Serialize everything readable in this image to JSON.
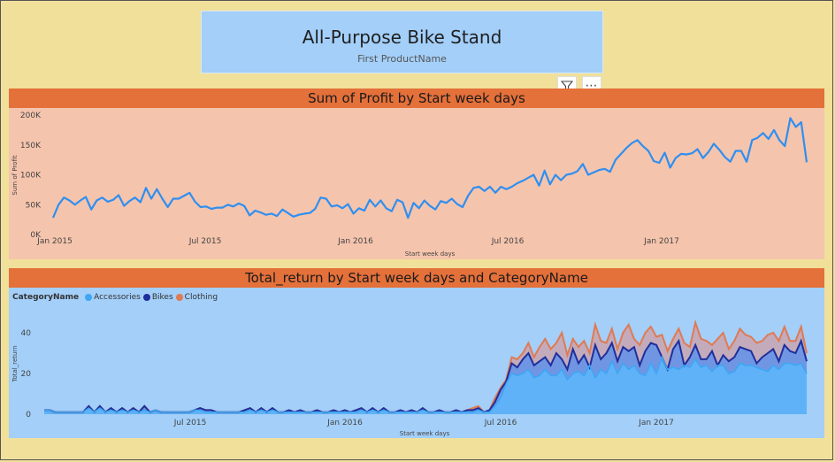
{
  "card": {
    "value": "All-Purpose Bike Stand",
    "label": "First ProductName"
  },
  "toolbar": {
    "filter_icon": "filter-icon",
    "more_label": "⋯"
  },
  "chart_data": [
    {
      "type": "line",
      "title": "Sum of Profit by Start week days",
      "xlabel": "Start week days",
      "ylabel": "Sum of Profit",
      "ylim": [
        0,
        200000
      ],
      "yticks": [
        "0K",
        "50K",
        "100K",
        "150K",
        "200K"
      ],
      "xticks": [
        "Jan 2015",
        "Jul 2015",
        "Jan 2016",
        "Jul 2016",
        "Jan 2017"
      ],
      "color": "#2f8ff0",
      "series": [
        {
          "values": [
            28000,
            50000,
            62000,
            57000,
            50000,
            57000,
            63000,
            42000,
            57000,
            62000,
            55000,
            58000,
            66000,
            48000,
            56000,
            62000,
            54000,
            78000,
            60000,
            76000,
            60000,
            46000,
            60000,
            60000,
            65000,
            70000,
            55000,
            46000,
            47000,
            43000,
            45000,
            45000,
            50000,
            47000,
            52000,
            48000,
            32000,
            40000,
            37000,
            33000,
            35000,
            31000,
            42000,
            36000,
            30000,
            33000,
            35000,
            36000,
            43000,
            62000,
            60000,
            47000,
            49000,
            44000,
            51000,
            35000,
            44000,
            40000,
            58000,
            47000,
            57000,
            44000,
            39000,
            58000,
            54000,
            28000,
            53000,
            44000,
            57000,
            48000,
            42000,
            56000,
            53000,
            60000,
            51000,
            46000,
            65000,
            78000,
            80000,
            73000,
            80000,
            70000,
            80000,
            76000,
            80000,
            86000,
            90000,
            95000,
            100000,
            82000,
            107000,
            84000,
            100000,
            91000,
            100000,
            102000,
            106000,
            118000,
            100000,
            104000,
            108000,
            110000,
            105000,
            125000,
            135000,
            145000,
            153000,
            158000,
            148000,
            140000,
            123000,
            120000,
            137000,
            112000,
            128000,
            135000,
            134000,
            136000,
            143000,
            128000,
            138000,
            152000,
            142000,
            130000,
            122000,
            140000,
            140000,
            122000,
            158000,
            162000,
            170000,
            160000,
            175000,
            158000,
            148000,
            195000,
            180000,
            188000,
            121000
          ]
        }
      ]
    },
    {
      "type": "area",
      "title": "Total_return by Start week days and CategoryName",
      "xlabel": "Start week days",
      "ylabel": "Total_return",
      "ylim": [
        0,
        50
      ],
      "yticks": [
        "0",
        "20",
        "40"
      ],
      "xticks": [
        "Jul 2015",
        "Jan 2016",
        "Jul 2016",
        "Jan 2017"
      ],
      "legend_title": "CategoryName",
      "legend_placement": "top-left",
      "series": [
        {
          "name": "Accessories",
          "color": "#3ea6f4"
        },
        {
          "name": "Bikes",
          "color": "#1f2f9c"
        },
        {
          "name": "Clothing",
          "color": "#e07a52"
        }
      ],
      "stacked_totals": {
        "accessories": [
          2,
          2,
          1,
          1,
          1,
          1,
          1,
          1,
          3,
          1,
          3,
          1,
          2,
          1,
          2,
          1,
          2,
          1,
          2,
          1,
          2,
          1,
          1,
          1,
          1,
          1,
          1,
          2,
          2,
          1,
          1,
          1,
          1,
          1,
          1,
          1,
          1,
          2,
          1,
          2,
          1,
          2,
          1,
          1,
          1,
          1,
          1,
          1,
          1,
          1,
          1,
          1,
          1,
          1,
          1,
          1,
          1,
          2,
          1,
          2,
          1,
          2,
          1,
          1,
          1,
          1,
          1,
          1,
          2,
          1,
          1,
          1,
          1,
          1,
          1,
          1,
          1,
          1,
          2,
          1,
          1,
          4,
          8,
          15,
          20,
          19,
          20,
          22,
          18,
          19,
          22,
          19,
          19,
          22,
          17,
          20,
          21,
          19,
          24,
          18,
          22,
          20,
          26,
          20,
          25,
          22,
          24,
          20,
          19,
          25,
          20,
          28,
          22,
          23,
          22,
          24,
          23,
          27,
          23,
          24,
          21,
          24,
          24,
          20,
          21,
          25,
          24,
          24,
          23,
          22,
          21,
          24,
          22,
          25,
          25,
          24,
          25,
          20
        ],
        "bikes": [
          2,
          2,
          1,
          1,
          1,
          1,
          1,
          1,
          4,
          1,
          4,
          1,
          3,
          1,
          3,
          1,
          3,
          1,
          4,
          1,
          2,
          1,
          1,
          1,
          1,
          1,
          1,
          2,
          3,
          2,
          2,
          1,
          1,
          1,
          1,
          1,
          2,
          3,
          1,
          3,
          1,
          3,
          1,
          1,
          2,
          1,
          2,
          1,
          1,
          2,
          1,
          1,
          2,
          1,
          2,
          1,
          2,
          3,
          1,
          3,
          1,
          3,
          1,
          1,
          2,
          1,
          2,
          1,
          3,
          1,
          1,
          2,
          1,
          1,
          2,
          1,
          2,
          2,
          3,
          1,
          2,
          6,
          12,
          16,
          25,
          23,
          27,
          30,
          24,
          26,
          28,
          24,
          30,
          27,
          22,
          32,
          25,
          29,
          23,
          34,
          27,
          30,
          35,
          26,
          33,
          31,
          33,
          24,
          31,
          35,
          34,
          28,
          22,
          32,
          36,
          24,
          28,
          34,
          27,
          27,
          31,
          24,
          29,
          26,
          28,
          33,
          32,
          31,
          25,
          28,
          30,
          32,
          26,
          34,
          31,
          30,
          36,
          26
        ],
        "clothing": [
          2,
          2,
          1,
          1,
          1,
          1,
          1,
          1,
          4,
          1,
          4,
          1,
          3,
          1,
          3,
          1,
          3,
          1,
          4,
          1,
          2,
          1,
          1,
          1,
          1,
          1,
          1,
          2,
          3,
          2,
          2,
          1,
          1,
          1,
          1,
          1,
          2,
          3,
          1,
          3,
          1,
          3,
          1,
          1,
          2,
          1,
          2,
          1,
          1,
          2,
          1,
          1,
          2,
          1,
          2,
          1,
          2,
          3,
          1,
          3,
          1,
          3,
          1,
          1,
          2,
          1,
          2,
          1,
          3,
          1,
          1,
          2,
          1,
          1,
          2,
          1,
          2,
          3,
          4,
          1,
          2,
          8,
          13,
          17,
          28,
          27,
          30,
          35,
          28,
          33,
          37,
          32,
          35,
          40,
          29,
          37,
          33,
          36,
          30,
          44,
          36,
          35,
          42,
          32,
          40,
          44,
          37,
          34,
          40,
          43,
          38,
          39,
          31,
          37,
          42,
          35,
          33,
          45,
          37,
          36,
          34,
          37,
          40,
          32,
          36,
          42,
          39,
          38,
          35,
          36,
          39,
          40,
          36,
          43,
          36,
          36,
          43,
          30
        ]
      }
    }
  ]
}
